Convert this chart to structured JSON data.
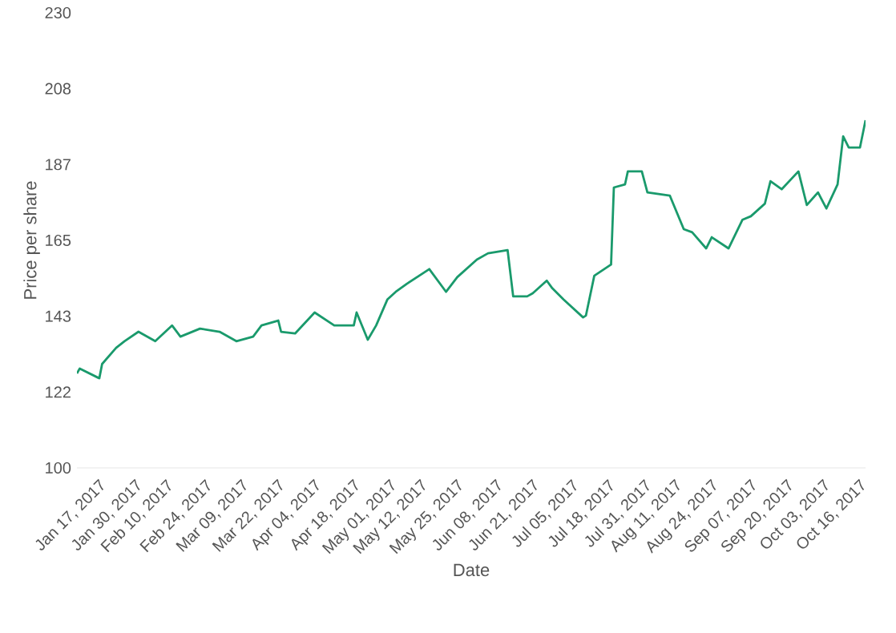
{
  "chart_data": {
    "type": "line",
    "xlabel": "Date",
    "ylabel": "Price per share",
    "color": "#1a9a6c",
    "line_style": "solid",
    "xlim": [
      "2017-01-10",
      "2017-10-19"
    ],
    "ylim": [
      100,
      230
    ],
    "xticks": [
      {
        "value": "2017-01-17",
        "label": "Jan 17, 2017"
      },
      {
        "value": "2017-01-30",
        "label": "Jan 30, 2017"
      },
      {
        "value": "2017-02-10",
        "label": "Feb 10, 2017"
      },
      {
        "value": "2017-02-24",
        "label": "Feb 24, 2017"
      },
      {
        "value": "2017-03-09",
        "label": "Mar 09, 2017"
      },
      {
        "value": "2017-03-22",
        "label": "Mar 22, 2017"
      },
      {
        "value": "2017-04-04",
        "label": "Apr 04, 2017"
      },
      {
        "value": "2017-04-18",
        "label": "Apr 18, 2017"
      },
      {
        "value": "2017-05-01",
        "label": "May 01, 2017"
      },
      {
        "value": "2017-05-12",
        "label": "May 12, 2017"
      },
      {
        "value": "2017-05-25",
        "label": "May 25, 2017"
      },
      {
        "value": "2017-06-08",
        "label": "Jun 08, 2017"
      },
      {
        "value": "2017-06-21",
        "label": "Jun 21, 2017"
      },
      {
        "value": "2017-07-05",
        "label": "Jul 05, 2017"
      },
      {
        "value": "2017-07-18",
        "label": "Jul 18, 2017"
      },
      {
        "value": "2017-07-31",
        "label": "Jul 31, 2017"
      },
      {
        "value": "2017-08-11",
        "label": "Aug 11, 2017"
      },
      {
        "value": "2017-08-24",
        "label": "Aug 24, 2017"
      },
      {
        "value": "2017-09-07",
        "label": "Sep 07, 2017"
      },
      {
        "value": "2017-09-20",
        "label": "Sep 20, 2017"
      },
      {
        "value": "2017-10-03",
        "label": "Oct 03, 2017"
      },
      {
        "value": "2017-10-16",
        "label": "Oct 16, 2017"
      }
    ],
    "yticks": [
      100,
      {
        "value": 121.67,
        "label": "122"
      },
      {
        "value": 143.33,
        "label": "143"
      },
      165,
      {
        "value": 186.67,
        "label": "187"
      },
      {
        "value": 208.33,
        "label": "208"
      },
      230
    ],
    "x": [
      "2017-01-10",
      "2017-01-11",
      "2017-01-18",
      "2017-01-19",
      "2017-01-24",
      "2017-01-27",
      "2017-02-01",
      "2017-02-07",
      "2017-02-13",
      "2017-02-16",
      "2017-02-23",
      "2017-03-02",
      "2017-03-08",
      "2017-03-14",
      "2017-03-17",
      "2017-03-23",
      "2017-03-24",
      "2017-03-29",
      "2017-04-05",
      "2017-04-12",
      "2017-04-19",
      "2017-04-20",
      "2017-04-24",
      "2017-04-27",
      "2017-05-01",
      "2017-05-04",
      "2017-05-08",
      "2017-05-16",
      "2017-05-22",
      "2017-05-26",
      "2017-06-02",
      "2017-06-06",
      "2017-06-13",
      "2017-06-15",
      "2017-06-20",
      "2017-06-22",
      "2017-06-27",
      "2017-06-29",
      "2017-07-03",
      "2017-07-10",
      "2017-07-11",
      "2017-07-14",
      "2017-07-20",
      "2017-07-21",
      "2017-07-25",
      "2017-07-26",
      "2017-07-31",
      "2017-08-02",
      "2017-08-10",
      "2017-08-15",
      "2017-08-18",
      "2017-08-23",
      "2017-08-25",
      "2017-08-31",
      "2017-09-05",
      "2017-09-08",
      "2017-09-13",
      "2017-09-15",
      "2017-09-19",
      "2017-09-25",
      "2017-09-28",
      "2017-10-02",
      "2017-10-05",
      "2017-10-09",
      "2017-10-11",
      "2017-10-13",
      "2017-10-17",
      "2017-10-19"
    ],
    "values": [
      127.0,
      128.4,
      125.6,
      129.7,
      134.3,
      136.2,
      138.9,
      136.2,
      140.7,
      137.5,
      139.8,
      138.9,
      136.2,
      137.5,
      140.7,
      142.1,
      138.9,
      138.4,
      144.4,
      140.7,
      140.7,
      144.4,
      136.6,
      140.7,
      148.1,
      150.3,
      152.6,
      156.8,
      150.3,
      154.5,
      159.5,
      161.3,
      162.2,
      149.0,
      149.0,
      149.9,
      153.5,
      151.3,
      148.1,
      143.0,
      143.5,
      154.9,
      158.1,
      180.1,
      181.0,
      184.7,
      184.7,
      178.7,
      177.8,
      168.2,
      167.3,
      162.7,
      165.9,
      162.7,
      170.9,
      171.9,
      175.5,
      181.9,
      179.6,
      184.7,
      175.1,
      178.7,
      174.1,
      181.0,
      194.7,
      191.5,
      191.5,
      199.3
    ]
  }
}
